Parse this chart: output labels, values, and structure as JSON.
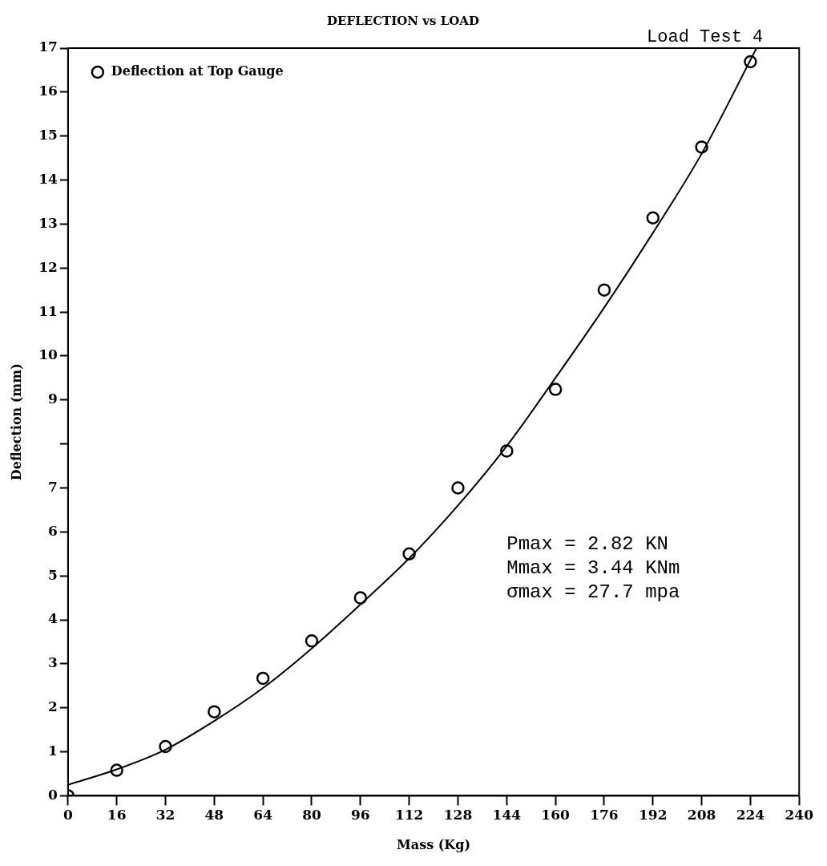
{
  "chart_data": {
    "type": "scatter",
    "title": "DEFLECTION vs LOAD",
    "xlabel": "Mass (Kg)",
    "ylabel": "Deflection (mm)",
    "annotations": [
      "Load Test 4",
      "Pmax = 2.82 KN",
      "Mmax = 3.44 KNm",
      "σmax = 27.7 mpa"
    ],
    "series": [
      {
        "name": "Deflection at Top Gauge",
        "color": "#000000",
        "marker": "circle",
        "x": [
          0,
          16,
          32,
          48,
          64,
          80,
          96,
          112,
          128,
          144,
          160,
          176,
          192,
          208,
          224
        ],
        "values": [
          0,
          0.58,
          1.12,
          1.91,
          2.67,
          3.52,
          4.5,
          5.5,
          7.0,
          7.84,
          9.24,
          11.5,
          13.14,
          14.75,
          16.69
        ]
      },
      {
        "type": "line",
        "color": "#000000",
        "x": [
          0,
          16,
          32,
          48,
          64,
          80,
          96,
          112,
          128,
          144,
          160,
          176,
          192,
          208,
          226
        ],
        "values": [
          0.25,
          0.6,
          1.05,
          1.7,
          2.45,
          3.35,
          4.35,
          5.4,
          6.6,
          7.95,
          9.5,
          11.1,
          12.8,
          14.6,
          17
        ]
      }
    ],
    "xlim": [
      0,
      240
    ],
    "xticks": [
      0,
      16,
      32,
      48,
      64,
      80,
      96,
      112,
      128,
      144,
      160,
      176,
      192,
      208,
      224,
      240
    ],
    "ylim": [
      0,
      17
    ],
    "yticks": [
      0,
      1,
      2,
      3,
      4,
      5,
      6,
      7,
      {
        "value": 8,
        "label": null
      },
      9,
      10,
      11,
      12,
      13,
      14,
      15,
      16,
      17
    ],
    "grid": false,
    "legend": "top left"
  }
}
